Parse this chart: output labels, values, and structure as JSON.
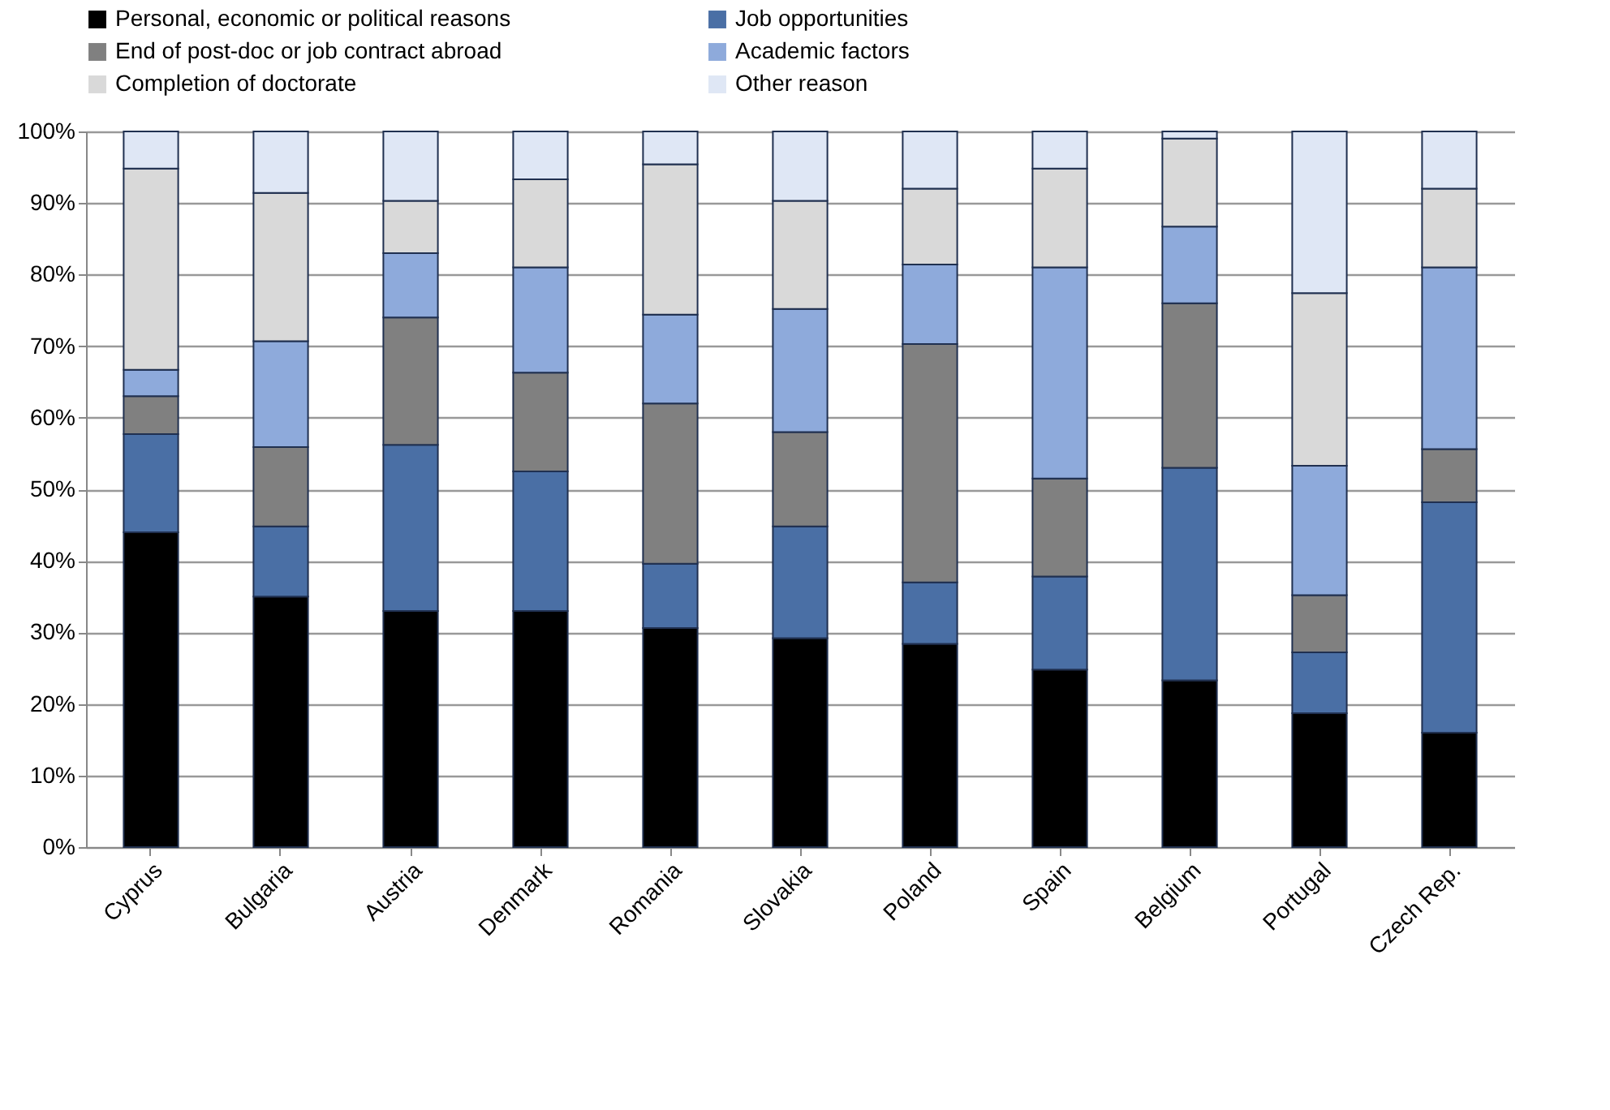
{
  "chart_data": {
    "type": "bar",
    "stacked": true,
    "categories": [
      "Cyprus",
      "Bulgaria",
      "Austria",
      "Denmark",
      "Romania",
      "Slovakia",
      "Poland",
      "Spain",
      "Belgium",
      "Portugal",
      "Czech Rep."
    ],
    "series": [
      {
        "name": "Personal, economic or political reasons",
        "color": "#000000",
        "values": [
          44,
          35,
          33,
          33,
          30.6,
          29.2,
          28.4,
          24.8,
          23.3,
          18.7,
          16
        ]
      },
      {
        "name": "Job opportunities",
        "color": "#4a6fa5",
        "values": [
          13.7,
          9.8,
          23.2,
          19.5,
          9,
          15.6,
          8.6,
          13,
          29.7,
          8.5,
          32.2
        ]
      },
      {
        "name": "End of post-doc or job contract abroad",
        "color": "#808080",
        "values": [
          5.3,
          11.1,
          17.8,
          13.8,
          22.4,
          13.2,
          33.3,
          13.7,
          23,
          8,
          7.4
        ]
      },
      {
        "name": "Academic factors",
        "color": "#8eaadb",
        "values": [
          3.7,
          14.8,
          9,
          14.7,
          12.4,
          17.2,
          11.1,
          29.5,
          10.7,
          18.1,
          25.4
        ]
      },
      {
        "name": "Completion of doctorate",
        "color": "#d9d9d9",
        "values": [
          28.1,
          20.7,
          7.3,
          12.3,
          21,
          15.1,
          10.6,
          13.8,
          12.3,
          24.1,
          11
        ]
      },
      {
        "name": "Other reason",
        "color": "#dfe7f5",
        "values": [
          5.2,
          8.6,
          9.7,
          6.7,
          4.6,
          9.7,
          8,
          5.2,
          1,
          22.6,
          8
        ]
      }
    ],
    "ylim": [
      0,
      100
    ],
    "yticks": [
      {
        "value": 0,
        "label": "0%"
      },
      {
        "value": 10,
        "label": "10%"
      },
      {
        "value": 20,
        "label": "20%"
      },
      {
        "value": 30,
        "label": "30%"
      },
      {
        "value": 40,
        "label": "40%"
      },
      {
        "value": 50,
        "label": "50%"
      },
      {
        "value": 60,
        "label": "60%"
      },
      {
        "value": 70,
        "label": "70%"
      },
      {
        "value": 80,
        "label": "80%"
      },
      {
        "value": 90,
        "label": "90%"
      },
      {
        "value": 100,
        "label": "100%"
      }
    ],
    "grid": "y",
    "legend": "top"
  }
}
